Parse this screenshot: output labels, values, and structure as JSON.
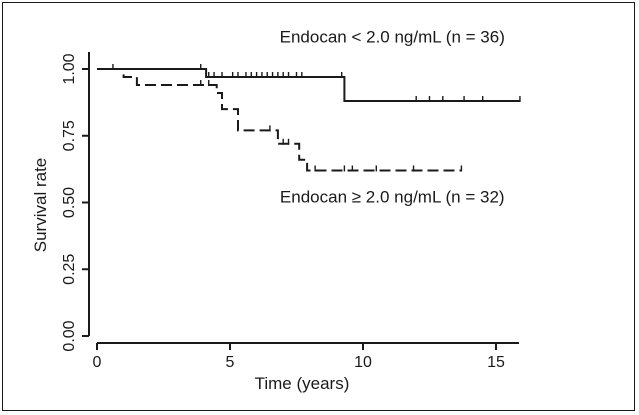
{
  "chart_data": {
    "type": "line",
    "subtype": "kaplan-meier",
    "xlabel": "Time (years)",
    "ylabel": "Survival rate",
    "xlim": [
      0,
      16
    ],
    "ylim": [
      0,
      1
    ],
    "x_ticks": [
      0,
      5,
      10,
      15
    ],
    "x_tick_labels": [
      "0",
      "5",
      "10",
      "15"
    ],
    "y_ticks": [
      0,
      0.25,
      0.5,
      0.75,
      1
    ],
    "y_tick_labels": [
      "0.00",
      "0.25",
      "0.50",
      "0.75",
      "1.00"
    ],
    "grid": false,
    "colors": {
      "ink": "#1a1a1a",
      "background": "#ffffff"
    },
    "series": [
      {
        "name": "Endocan < 2.0 ng/mL (n = 36)",
        "line_style": "solid",
        "steps": [
          [
            0,
            1.0
          ],
          [
            4.1,
            1.0
          ],
          [
            4.1,
            0.97
          ],
          [
            9.3,
            0.97
          ],
          [
            9.3,
            0.88
          ],
          [
            15.9,
            0.88
          ]
        ],
        "censor_times": [
          0.6,
          3.9,
          4.2,
          4.4,
          4.7,
          5.1,
          5.3,
          5.6,
          5.8,
          6.0,
          6.2,
          6.4,
          6.6,
          6.8,
          7.0,
          7.2,
          7.5,
          7.7,
          9.2,
          12.0,
          12.5,
          13.0,
          13.8,
          14.5,
          15.9
        ]
      },
      {
        "name": "Endocan ≥ 2.0 ng/mL (n = 32)",
        "line_style": "dashed",
        "steps": [
          [
            0,
            1.0
          ],
          [
            1.0,
            1.0
          ],
          [
            1.0,
            0.97
          ],
          [
            1.5,
            0.97
          ],
          [
            1.5,
            0.94
          ],
          [
            4.5,
            0.94
          ],
          [
            4.5,
            0.91
          ],
          [
            4.7,
            0.91
          ],
          [
            4.7,
            0.85
          ],
          [
            5.3,
            0.85
          ],
          [
            5.3,
            0.77
          ],
          [
            6.8,
            0.77
          ],
          [
            6.8,
            0.72
          ],
          [
            7.6,
            0.72
          ],
          [
            7.6,
            0.66
          ],
          [
            7.9,
            0.66
          ],
          [
            7.9,
            0.62
          ],
          [
            13.7,
            0.62
          ]
        ],
        "censor_times": [
          3.9,
          4.2,
          4.7,
          6.5,
          7.0,
          7.2,
          7.9,
          8.2,
          9.3,
          9.6,
          10.5,
          11.9,
          13.7
        ]
      }
    ],
    "annotations": [
      {
        "text": "Endocan < 2.0 ng/mL (n = 36)",
        "x": 11.1,
        "y": 1.1
      },
      {
        "text": "Endocan ≥ 2.0 ng/mL (n = 32)",
        "x": 11.1,
        "y": 0.5
      }
    ]
  }
}
